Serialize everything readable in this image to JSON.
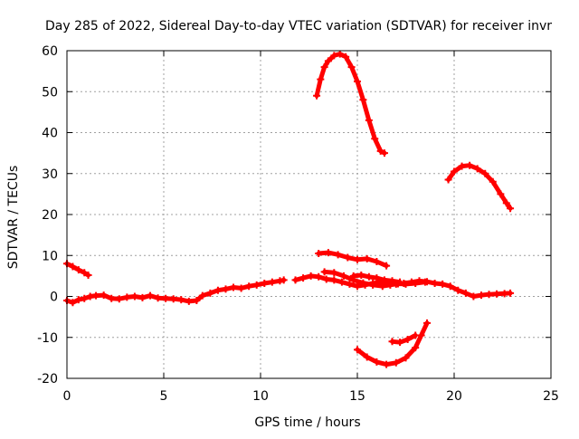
{
  "chart_data": {
    "type": "scatter",
    "title": "Day 285 of 2022, Sidereal Day-to-day VTEC variation (SDTVAR) for receiver invr",
    "xlabel": "GPS time / hours",
    "ylabel": "SDTVAR / TECUs",
    "xlim": [
      0,
      25
    ],
    "ylim": [
      -20,
      60
    ],
    "xticks": [
      "0",
      "5",
      "10",
      "15",
      "20",
      "25"
    ],
    "yticks": [
      "-20",
      "-10",
      "0",
      "10",
      "20",
      "30",
      "40",
      "50",
      "60"
    ],
    "grid": true,
    "legend": "none",
    "marker": "plus",
    "color": "#ff0000",
    "series": [
      {
        "name": "seg1",
        "x": [
          0.0,
          0.3,
          0.6,
          0.9,
          1.1
        ],
        "y": [
          8.0,
          7.3,
          6.5,
          5.8,
          5.2
        ]
      },
      {
        "name": "seg2",
        "x": [
          0.0,
          0.3,
          0.6,
          0.9,
          1.2,
          1.5,
          1.9,
          2.3,
          2.7,
          3.1,
          3.5,
          3.9,
          4.3,
          4.7,
          5.1,
          5.5,
          5.9,
          6.3,
          6.7,
          7.0,
          7.4,
          7.8,
          8.2,
          8.6,
          9.0,
          9.4,
          9.8,
          10.2,
          10.6,
          11.0,
          11.2
        ],
        "y": [
          -1.0,
          -1.5,
          -0.8,
          -0.5,
          0.0,
          0.2,
          0.3,
          -0.5,
          -0.6,
          -0.2,
          0.0,
          -0.3,
          0.2,
          -0.4,
          -0.5,
          -0.6,
          -0.8,
          -1.2,
          -1.0,
          0.2,
          0.8,
          1.5,
          1.8,
          2.2,
          2.0,
          2.5,
          2.8,
          3.2,
          3.5,
          3.8,
          4.0
        ]
      },
      {
        "name": "seg3",
        "x": [
          11.8,
          12.2,
          12.6,
          13.0,
          13.4,
          13.8,
          14.2,
          14.6,
          15.0,
          15.4,
          15.8,
          16.2,
          16.6,
          17.0,
          17.4,
          17.8,
          18.2,
          18.6,
          19.0,
          19.4,
          19.8,
          20.2,
          20.6,
          21.0,
          21.4,
          21.8,
          22.2,
          22.6,
          22.9
        ],
        "y": [
          4.0,
          4.5,
          5.0,
          4.8,
          4.2,
          4.0,
          3.5,
          3.0,
          2.5,
          2.8,
          3.2,
          3.5,
          3.3,
          3.0,
          3.2,
          3.5,
          3.8,
          3.6,
          3.2,
          3.0,
          2.5,
          1.5,
          0.8,
          0.0,
          0.3,
          0.5,
          0.6,
          0.7,
          0.8
        ]
      },
      {
        "name": "seg4",
        "x": [
          13.3,
          13.8,
          14.3,
          14.8,
          15.3,
          15.8,
          16.3,
          16.7,
          17.1,
          17.5,
          18.0,
          18.5
        ],
        "y": [
          6.0,
          5.8,
          5.0,
          4.0,
          3.3,
          2.8,
          2.5,
          2.8,
          3.1,
          3.0,
          3.2,
          3.5
        ]
      },
      {
        "name": "seg5",
        "x": [
          14.8,
          15.2,
          15.6,
          16.0,
          16.4,
          16.8,
          17.2
        ],
        "y": [
          5.0,
          5.2,
          4.8,
          4.5,
          4.0,
          3.8,
          3.5
        ]
      },
      {
        "name": "seg6",
        "x": [
          13.0,
          13.5,
          14.0,
          14.5,
          15.0,
          15.5,
          16.0,
          16.5
        ],
        "y": [
          10.5,
          10.7,
          10.2,
          9.5,
          9.0,
          9.2,
          8.5,
          7.5
        ]
      },
      {
        "name": "seg7",
        "x": [
          12.9,
          13.1,
          13.3,
          13.5,
          13.8,
          14.1,
          14.4,
          14.7,
          15.0,
          15.3,
          15.6,
          15.9,
          16.2,
          16.4
        ],
        "y": [
          49.0,
          53.0,
          56.0,
          57.5,
          58.8,
          59.2,
          58.5,
          56.0,
          52.5,
          48.0,
          43.0,
          38.5,
          35.5,
          35.0
        ]
      },
      {
        "name": "seg8",
        "x": [
          15.0,
          15.5,
          16.0,
          16.5,
          17.0,
          17.5,
          18.0,
          18.3,
          18.6
        ],
        "y": [
          -13.0,
          -14.8,
          -16.0,
          -16.6,
          -16.2,
          -15.0,
          -12.5,
          -9.5,
          -6.5
        ]
      },
      {
        "name": "seg9",
        "x": [
          16.8,
          17.2,
          17.6,
          18.0
        ],
        "y": [
          -11.0,
          -11.2,
          -10.5,
          -9.5
        ]
      },
      {
        "name": "seg10",
        "x": [
          19.7,
          20.0,
          20.4,
          20.8,
          21.2,
          21.6,
          22.0,
          22.4,
          22.7,
          22.9
        ],
        "y": [
          28.5,
          30.5,
          31.8,
          32.0,
          31.2,
          30.0,
          28.0,
          25.0,
          22.8,
          21.5
        ]
      }
    ]
  }
}
